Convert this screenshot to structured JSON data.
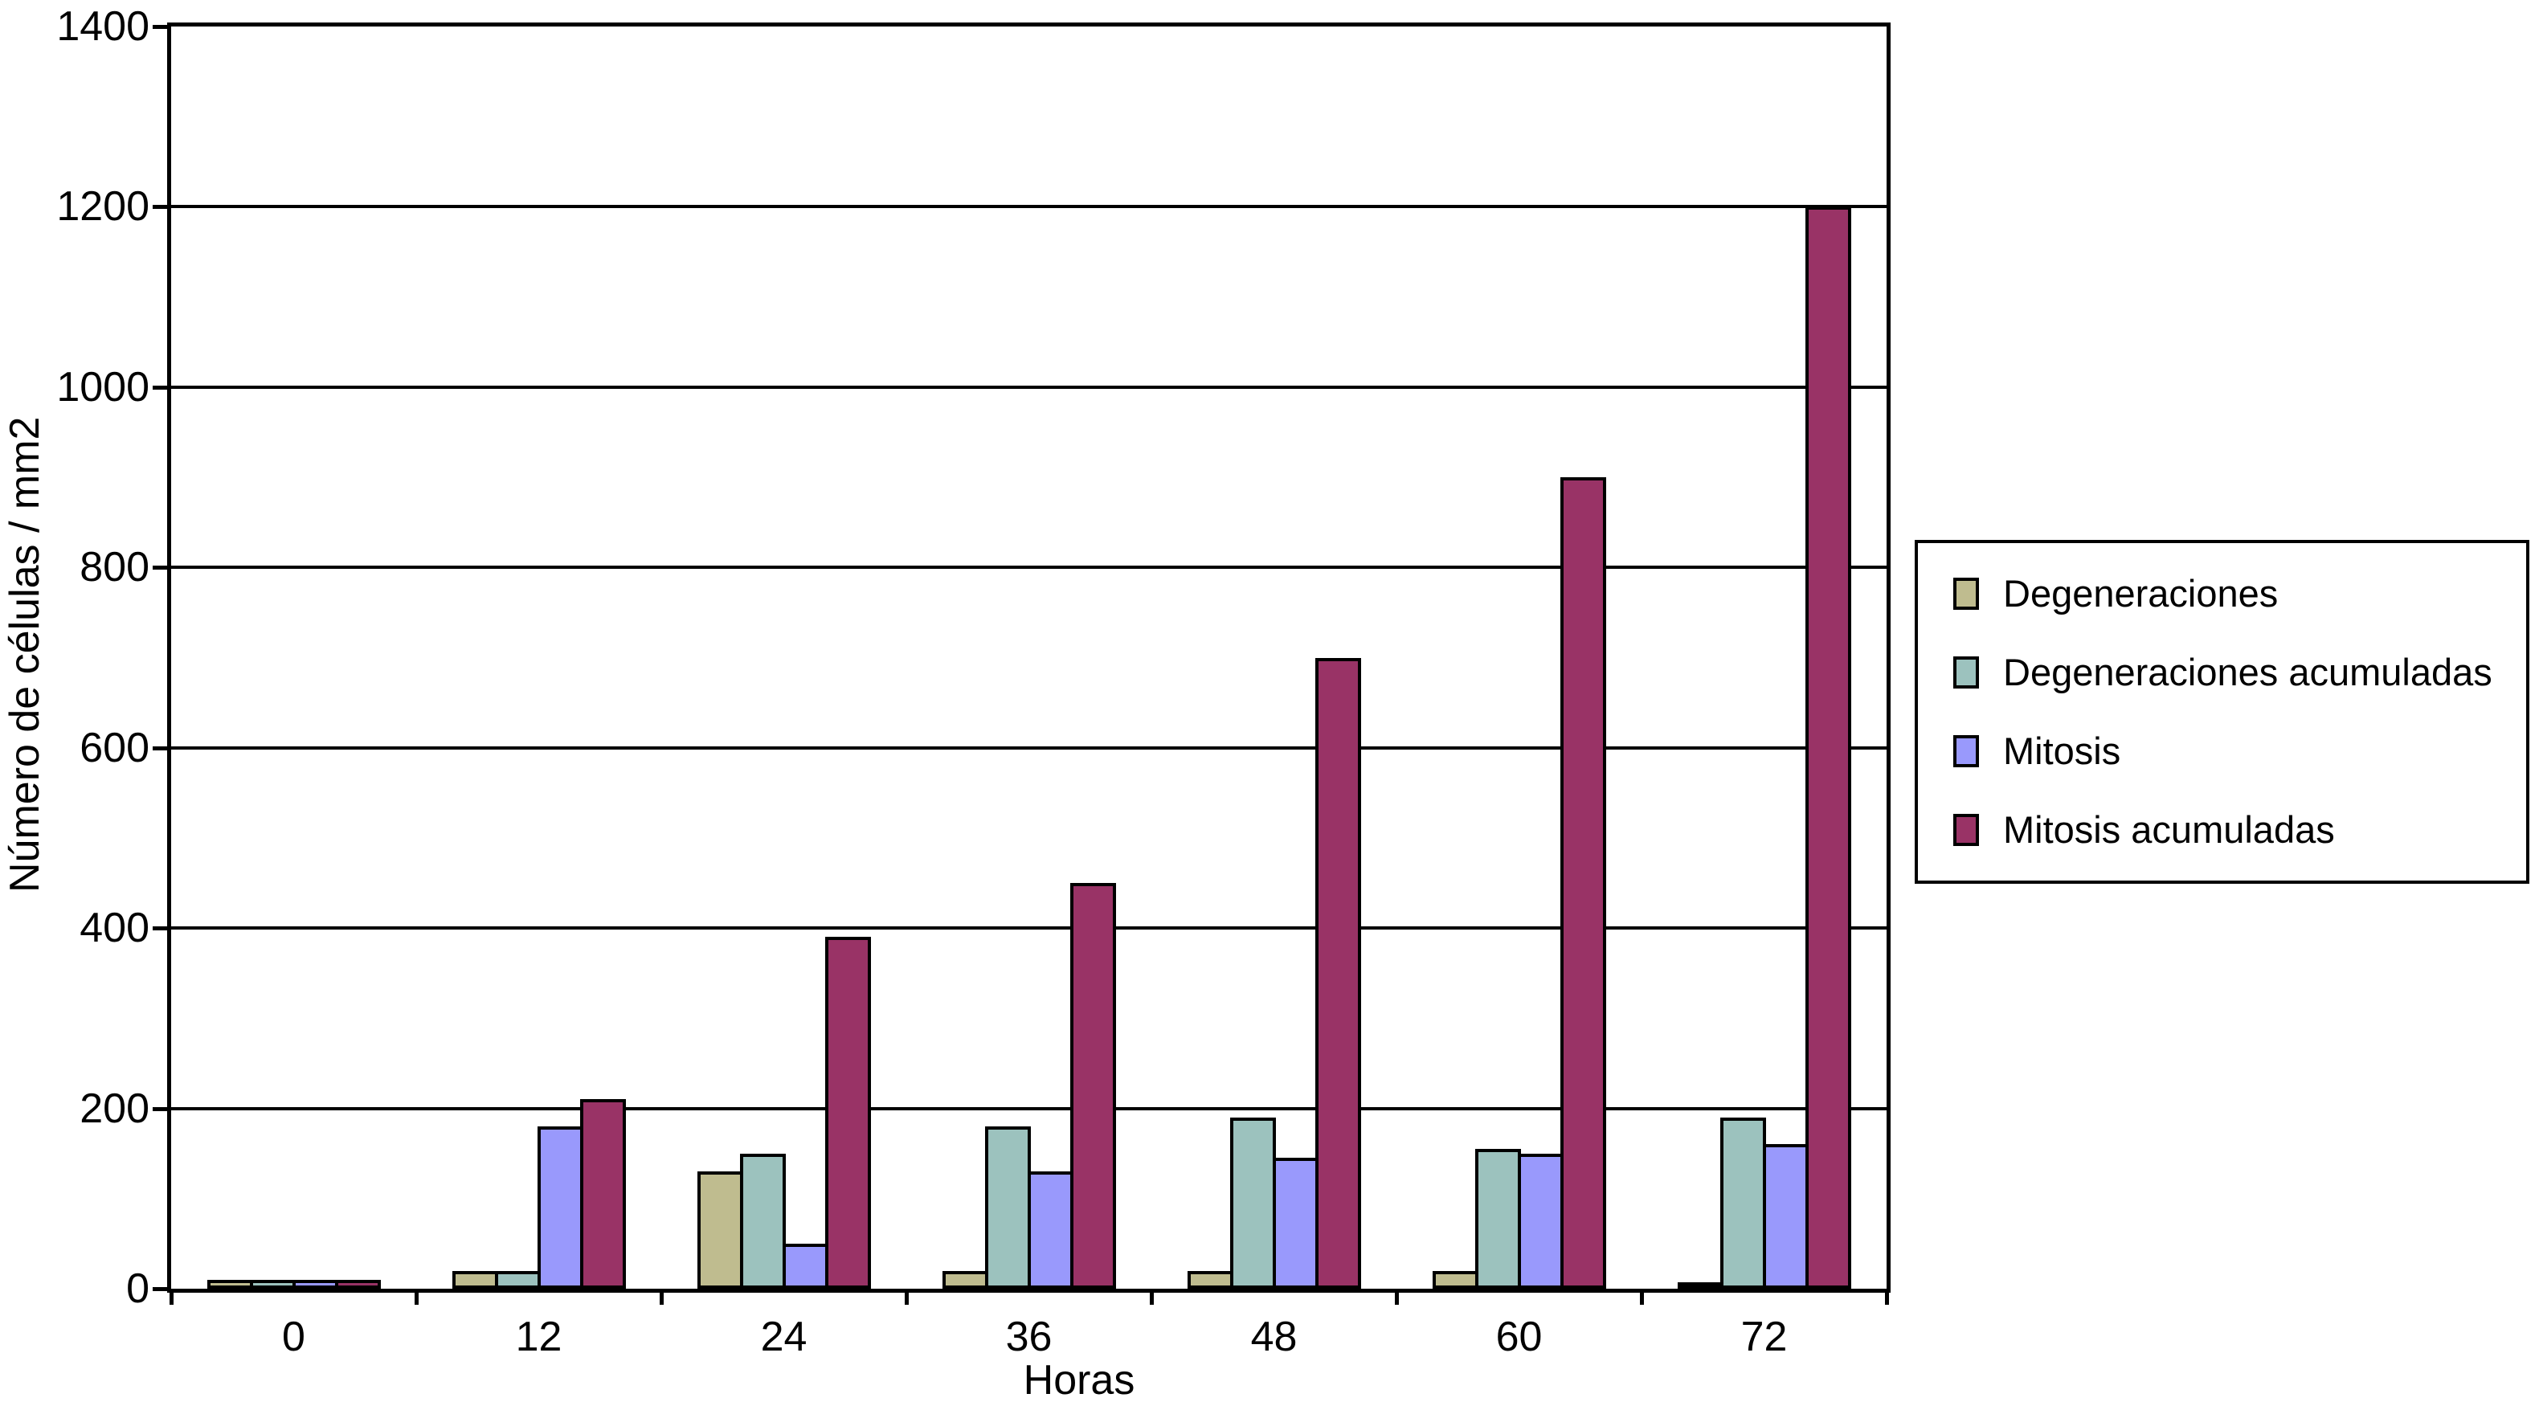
{
  "chart_data": {
    "type": "bar",
    "title": "",
    "categories": [
      "0",
      "12",
      "24",
      "36",
      "48",
      "60",
      "72"
    ],
    "series": [
      {
        "name": "Degeneraciones",
        "color": "#BFBC8F",
        "values": [
          10,
          20,
          130,
          20,
          20,
          20,
          5
        ]
      },
      {
        "name": "Degeneraciones acumuladas",
        "color": "#9CC2BE",
        "values": [
          10,
          20,
          150,
          180,
          190,
          155,
          190
        ]
      },
      {
        "name": "Mitosis",
        "color": "#9999FC",
        "values": [
          10,
          180,
          50,
          130,
          145,
          150,
          160
        ]
      },
      {
        "name": "Mitosis acumuladas",
        "color": "#993366",
        "values": [
          10,
          210,
          390,
          450,
          700,
          900,
          1200
        ]
      }
    ],
    "xlabel": "Horas",
    "ylabel": "Número de células / mm2",
    "ylim": [
      0,
      1400
    ],
    "yticks": [
      0,
      200,
      400,
      600,
      800,
      1000,
      1200,
      1400
    ],
    "grid": true,
    "legend_position": "right",
    "axis_color": "#000000",
    "background_color": "#FFFFFF"
  }
}
